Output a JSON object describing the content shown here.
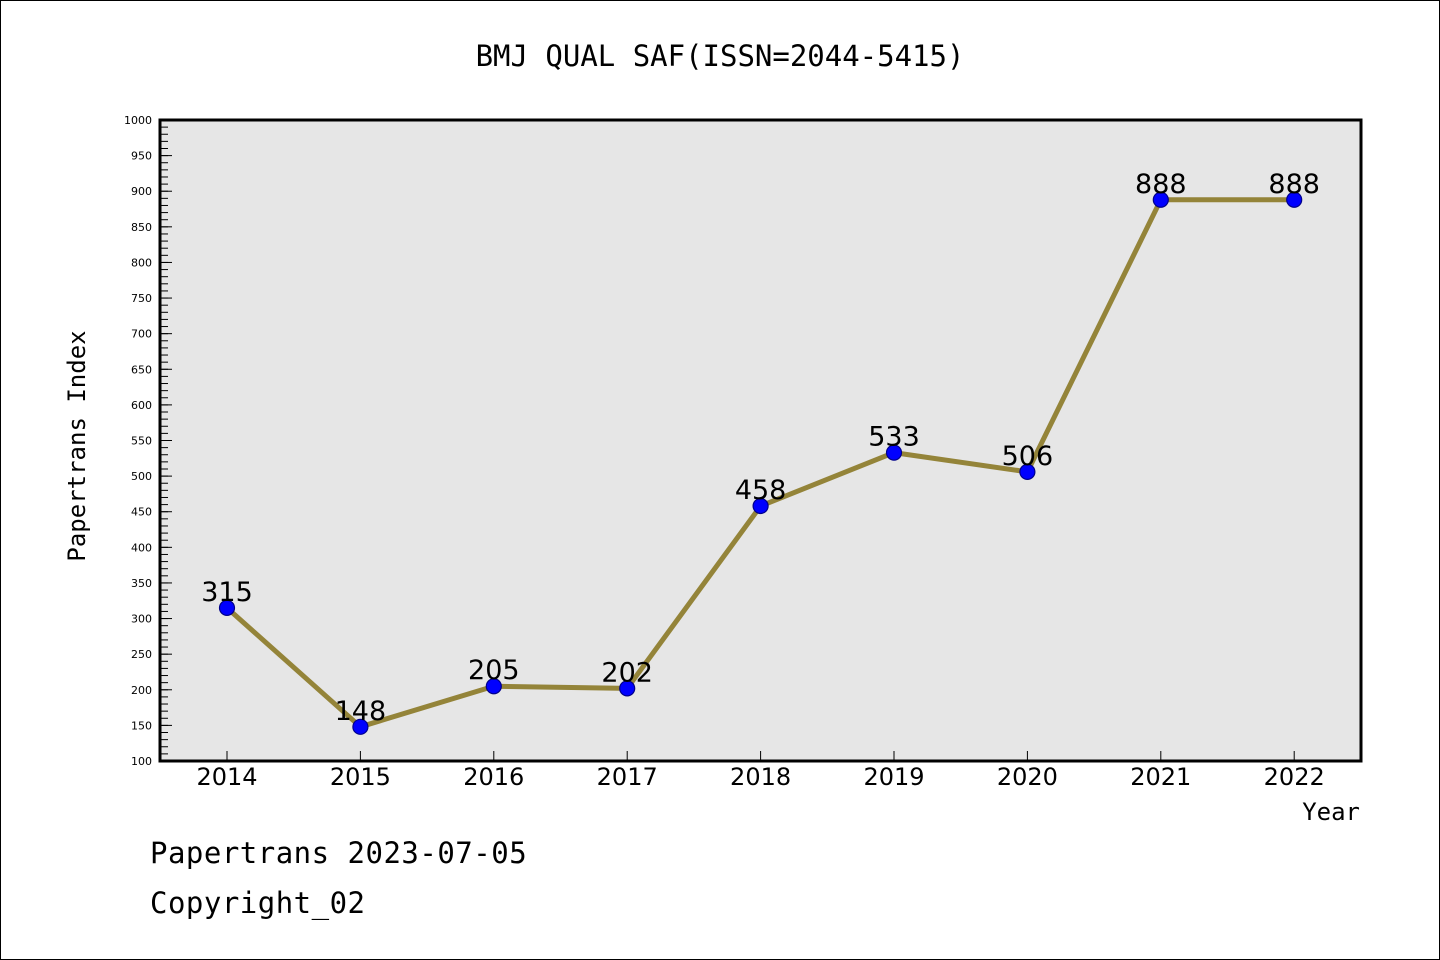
{
  "footer": {
    "date_line": "Papertrans 2023-07-05",
    "copyright_line": "Copyright_02"
  },
  "chart_data": {
    "type": "line",
    "title": "BMJ QUAL SAF(ISSN=2044-5415)",
    "xlabel": "Year",
    "ylabel": "Papertrans Index",
    "categories": [
      "2014",
      "2015",
      "2016",
      "2017",
      "2018",
      "2019",
      "2020",
      "2021",
      "2022"
    ],
    "series": [
      {
        "values": [
          315,
          148,
          205,
          202,
          458,
          533,
          506,
          888,
          888
        ]
      }
    ],
    "data_labels": [
      "315",
      "148",
      "205",
      "202",
      "458",
      "533",
      "506",
      "888",
      "888"
    ],
    "ylim": [
      100,
      1000
    ],
    "y_ticks": [
      "100",
      "150",
      "200",
      "250",
      "300",
      "350",
      "400",
      "450",
      "500",
      "550",
      "600",
      "650",
      "700",
      "750",
      "800",
      "850",
      "900",
      "950",
      "1000"
    ],
    "grid": false,
    "legend": "none",
    "colors": {
      "plot_background": "#e6e6e6",
      "line": "#948439",
      "marker_fill": "#0000ff",
      "marker_stroke": "#00008b",
      "frame": "#000000"
    }
  }
}
